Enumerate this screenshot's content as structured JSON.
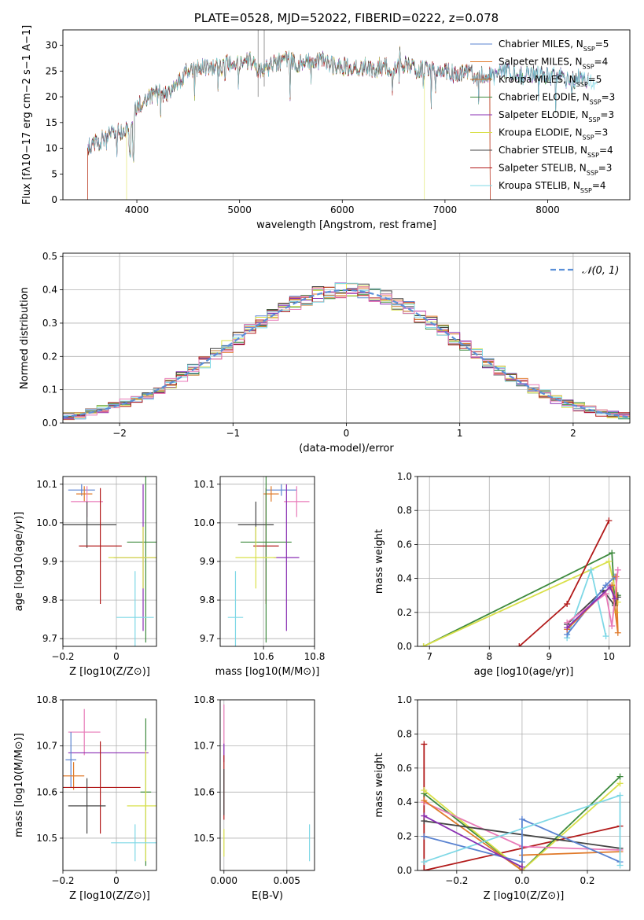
{
  "colors": {
    "Chabrier MILES": "#5a83d1",
    "Salpeter MILES": "#e07a2a",
    "Kroupa MILES": "#c17a2e",
    "Chabrier ELODIE": "#3d8a3d",
    "Salpeter ELODIE": "#8a2fb3",
    "Kroupa ELODIE": "#d9e04a",
    "Chabrier STELIB": "#444444",
    "Salpeter STELIB": "#b21a1a",
    "Kroupa STELIB": "#7fd8e6",
    "pink": "#e87ab8",
    "grid": "#b0b0b0",
    "norm_line": "#5a8fd8"
  },
  "chart_data": [
    {
      "id": "spectrum",
      "type": "line",
      "title": "PLATE=0528, MJD=52022, FIBERID=0222, z=0.078",
      "xlabel": "wavelength [Angstrom, rest frame]",
      "ylabel": "Flux [fλ10−17 erg cm−2 s−1 A−1]",
      "xlim": [
        3280,
        8800
      ],
      "ylim": [
        0,
        33
      ],
      "xticks": [
        4000,
        5000,
        6000,
        7000,
        8000
      ],
      "yticks": [
        0,
        5,
        10,
        15,
        20,
        25,
        30
      ],
      "grid": false,
      "legend_position": "top-right",
      "legend": [
        "Chabrier MILES, N_SSP=5",
        "Salpeter MILES, N_SSP=4",
        "Kroupa MILES, N_SSP=5",
        "Chabrier ELODIE, N_SSP=3",
        "Salpeter ELODIE, N_SSP=3",
        "Kroupa ELODIE, N_SSP=3",
        "Chabrier STELIB, N_SSP=4",
        "Salpeter STELIB, N_SSP=3",
        "Kroupa STELIB, N_SSP=4"
      ],
      "continuum": [
        [
          3500,
          10
        ],
        [
          3600,
          11
        ],
        [
          3700,
          12
        ],
        [
          3800,
          13
        ],
        [
          3900,
          13.5
        ],
        [
          3950,
          15
        ],
        [
          4000,
          18
        ],
        [
          4100,
          20
        ],
        [
          4200,
          21
        ],
        [
          4300,
          20
        ],
        [
          4400,
          23
        ],
        [
          4500,
          25
        ],
        [
          4600,
          25.5
        ],
        [
          4700,
          26
        ],
        [
          4800,
          25.5
        ],
        [
          4900,
          26.5
        ],
        [
          5000,
          26
        ],
        [
          5100,
          27
        ],
        [
          5200,
          25
        ],
        [
          5300,
          26
        ],
        [
          5400,
          27
        ],
        [
          5500,
          27
        ],
        [
          5600,
          26.5
        ],
        [
          5700,
          27
        ],
        [
          5800,
          27
        ],
        [
          5900,
          26
        ],
        [
          6000,
          26
        ],
        [
          6100,
          26
        ],
        [
          6200,
          26
        ],
        [
          6300,
          25.5
        ],
        [
          6400,
          26
        ],
        [
          6500,
          25.5
        ],
        [
          6600,
          26.5
        ],
        [
          6700,
          25.5
        ],
        [
          6800,
          25
        ],
        [
          6900,
          25
        ],
        [
          7000,
          25
        ],
        [
          7100,
          24.5
        ],
        [
          7200,
          25
        ],
        [
          7300,
          24
        ],
        [
          7400,
          24
        ],
        [
          7500,
          24
        ],
        [
          7600,
          25
        ],
        [
          7700,
          24
        ],
        [
          7800,
          24.5
        ],
        [
          7900,
          24.5
        ],
        [
          8000,
          24
        ],
        [
          8100,
          24
        ],
        [
          8200,
          23.5
        ],
        [
          8300,
          23.5
        ],
        [
          8400,
          23
        ],
        [
          8500,
          22
        ]
      ],
      "series_extents": [
        [
          3520,
          7220
        ],
        [
          3520,
          7440
        ],
        [
          3520,
          7440
        ],
        [
          3520,
          8400
        ],
        [
          3520,
          8400
        ],
        [
          3900,
          6800
        ],
        [
          3520,
          8400
        ],
        [
          3520,
          7440
        ],
        [
          3520,
          8490
        ]
      ]
    },
    {
      "id": "residuals",
      "type": "line",
      "xlabel": "(data-model)/error",
      "ylabel": "Normed distribution",
      "xlim": [
        -2.5,
        2.5
      ],
      "ylim": [
        0,
        0.51
      ],
      "xticks": [
        -2,
        -1,
        0,
        1,
        2
      ],
      "yticks": [
        0.0,
        0.1,
        0.2,
        0.3,
        0.4,
        0.5
      ],
      "grid": true,
      "legend_position": "top-right",
      "legend": [
        "N(0,1)"
      ],
      "normal": {
        "mean": 0,
        "sd": 1
      }
    },
    {
      "id": "age_vs_Z",
      "type": "scatter",
      "xlabel": "Z [log10(Z/Z⊙)]",
      "ylabel": "age [log10(age/yr)]",
      "xlim": [
        -0.2,
        0.15
      ],
      "ylim": [
        9.68,
        10.12
      ],
      "xticks": [
        -0.2,
        0.0
      ],
      "yticks": [
        9.7,
        9.8,
        9.9,
        10.0,
        10.1
      ],
      "grid": true,
      "points": [
        {
          "c": "Chabrier MILES",
          "x": -0.13,
          "y": 10.085,
          "ex": 0.05,
          "ey": 0.015
        },
        {
          "c": "Salpeter MILES",
          "x": -0.12,
          "y": 10.075,
          "ex": 0.03,
          "ey": 0.02
        },
        {
          "c": "pink",
          "x": -0.11,
          "y": 10.055,
          "ex": 0.06,
          "ey": 0.04
        },
        {
          "c": "Chabrier STELIB",
          "x": -0.11,
          "y": 9.995,
          "ex": 0.11,
          "ey": 0.06
        },
        {
          "c": "Salpeter STELIB",
          "x": -0.06,
          "y": 9.94,
          "ex": 0.08,
          "ey": 0.15
        },
        {
          "c": "Chabrier ELODIE",
          "x": 0.11,
          "y": 9.95,
          "ex": 0.07,
          "ey": 0.26
        },
        {
          "c": "Salpeter ELODIE",
          "x": 0.1,
          "y": 9.91,
          "ex": 0.11,
          "ey": 0.19
        },
        {
          "c": "Kroupa ELODIE",
          "x": 0.1,
          "y": 9.91,
          "ex": 0.13,
          "ey": 0.08
        },
        {
          "c": "Kroupa STELIB",
          "x": 0.07,
          "y": 9.755,
          "ex": 0.07,
          "ey": 0.12
        }
      ]
    },
    {
      "id": "age_vs_mass",
      "type": "scatter",
      "xlabel": "mass [log10(M/M⊙)]",
      "ylabel": "",
      "xlim": [
        10.43,
        10.8
      ],
      "ylim": [
        9.68,
        10.12
      ],
      "xticks": [
        10.6,
        10.8
      ],
      "yticks": [
        9.7,
        9.8,
        9.9,
        10.0,
        10.1
      ],
      "grid": true,
      "points": [
        {
          "c": "Chabrier MILES",
          "x": 10.67,
          "y": 10.085,
          "ex": 0.06,
          "ey": 0.015
        },
        {
          "c": "Salpeter MILES",
          "x": 10.63,
          "y": 10.075,
          "ex": 0.03,
          "ey": 0.02
        },
        {
          "c": "pink",
          "x": 10.73,
          "y": 10.055,
          "ex": 0.05,
          "ey": 0.04
        },
        {
          "c": "Chabrier STELIB",
          "x": 10.57,
          "y": 9.995,
          "ex": 0.07,
          "ey": 0.06
        },
        {
          "c": "Salpeter STELIB",
          "x": 10.61,
          "y": 9.94,
          "ex": 0.05,
          "ey": 0.15
        },
        {
          "c": "Chabrier ELODIE",
          "x": 10.61,
          "y": 9.95,
          "ex": 0.1,
          "ey": 0.26
        },
        {
          "c": "Salpeter ELODIE",
          "x": 10.69,
          "y": 9.91,
          "ex": 0.05,
          "ey": 0.19
        },
        {
          "c": "Kroupa ELODIE",
          "x": 10.57,
          "y": 9.91,
          "ex": 0.08,
          "ey": 0.08
        },
        {
          "c": "Kroupa STELIB",
          "x": 10.49,
          "y": 9.755,
          "ex": 0.03,
          "ey": 0.12
        }
      ]
    },
    {
      "id": "weight_vs_age",
      "type": "line",
      "xlabel": "age [log10(age/yr)]",
      "ylabel": "mass weight",
      "xlim": [
        6.8,
        10.35
      ],
      "ylim": [
        0,
        1
      ],
      "xticks": [
        7,
        8,
        9,
        10
      ],
      "yticks": [
        0.0,
        0.2,
        0.4,
        0.6,
        0.8,
        1.0
      ],
      "grid": true,
      "series": [
        {
          "c": "Chabrier ELODIE",
          "pts": [
            [
              6.9,
              0.0
            ],
            [
              10.05,
              0.55
            ],
            [
              10.1,
              0.25
            ],
            [
              10.15,
              0.3
            ]
          ]
        },
        {
          "c": "Kroupa ELODIE",
          "pts": [
            [
              6.9,
              0.0
            ],
            [
              10.0,
              0.5
            ],
            [
              10.15,
              0.26
            ],
            [
              10.12,
              0.2
            ]
          ]
        },
        {
          "c": "Salpeter STELIB",
          "pts": [
            [
              8.5,
              0.0
            ],
            [
              9.3,
              0.25
            ],
            [
              10.0,
              0.74
            ]
          ]
        },
        {
          "c": "Chabrier STELIB",
          "pts": [
            [
              9.3,
              0.13
            ],
            [
              9.9,
              0.33
            ],
            [
              10.1,
              0.24
            ],
            [
              10.15,
              0.29
            ]
          ]
        },
        {
          "c": "Kroupa STELIB",
          "pts": [
            [
              9.3,
              0.05
            ],
            [
              9.7,
              0.45
            ],
            [
              9.95,
              0.06
            ]
          ]
        },
        {
          "c": "Chabrier MILES",
          "pts": [
            [
              9.3,
              0.07
            ],
            [
              9.95,
              0.36
            ],
            [
              10.1,
              0.41
            ]
          ]
        },
        {
          "c": "Salpeter MILES",
          "pts": [
            [
              9.3,
              0.1
            ],
            [
              10.05,
              0.36
            ],
            [
              10.15,
              0.08
            ],
            [
              10.12,
              0.41
            ]
          ]
        },
        {
          "c": "pink",
          "pts": [
            [
              9.3,
              0.14
            ],
            [
              9.95,
              0.31
            ],
            [
              10.05,
              0.12
            ],
            [
              10.15,
              0.45
            ]
          ]
        },
        {
          "c": "Salpeter ELODIE",
          "pts": [
            [
              9.3,
              0.11
            ],
            [
              10.02,
              0.35
            ],
            [
              10.1,
              0.28
            ]
          ]
        }
      ]
    },
    {
      "id": "mass_vs_Z",
      "type": "scatter",
      "xlabel": "Z [log10(Z/Z⊙)]",
      "ylabel": "mass [log10(M/M⊙)]",
      "xlim": [
        -0.2,
        0.15
      ],
      "ylim": [
        10.43,
        10.8
      ],
      "xticks": [
        -0.2,
        0.0
      ],
      "yticks": [
        10.5,
        10.6,
        10.7,
        10.8
      ],
      "grid": true,
      "points": [
        {
          "c": "pink",
          "x": -0.12,
          "y": 10.73,
          "ex": 0.06,
          "ey": 0.05
        },
        {
          "c": "Salpeter ELODIE",
          "x": -0.03,
          "y": 10.685,
          "ex": 0.15,
          "ey": 0.0
        },
        {
          "c": "Chabrier MILES",
          "x": -0.17,
          "y": 10.67,
          "ex": 0.02,
          "ey": 0.06
        },
        {
          "c": "Salpeter MILES",
          "x": -0.16,
          "y": 10.635,
          "ex": 0.04,
          "ey": 0.03
        },
        {
          "c": "Salpeter STELIB",
          "x": -0.06,
          "y": 10.61,
          "ex": 0.15,
          "ey": 0.1
        },
        {
          "c": "Chabrier ELODIE",
          "x": 0.11,
          "y": 10.6,
          "ex": 0.02,
          "ey": 0.16
        },
        {
          "c": "Chabrier STELIB",
          "x": -0.11,
          "y": 10.57,
          "ex": 0.07,
          "ey": 0.06
        },
        {
          "c": "Kroupa ELODIE",
          "x": 0.11,
          "y": 10.57,
          "ex": 0.07,
          "ey": 0.12
        },
        {
          "c": "Kroupa STELIB",
          "x": 0.07,
          "y": 10.49,
          "ex": 0.09,
          "ey": 0.04
        }
      ]
    },
    {
      "id": "mass_vs_EBV",
      "type": "scatter",
      "xlabel": "E(B-V)",
      "ylabel": "",
      "xlim": [
        -0.0003,
        0.0072
      ],
      "ylim": [
        10.43,
        10.8
      ],
      "xticks": [
        0.0,
        0.005
      ],
      "yticks": [
        10.5,
        10.6,
        10.7,
        10.8
      ],
      "grid": true,
      "points": [
        {
          "c": "pink",
          "x": 0.0,
          "y": 10.73,
          "ex": 0,
          "ey": 0.06
        },
        {
          "c": "Salpeter ELODIE",
          "x": 0.0,
          "y": 10.685,
          "ex": 0,
          "ey": 0.02
        },
        {
          "c": "Salpeter STELIB",
          "x": 0.0,
          "y": 10.61,
          "ex": 0,
          "ey": 0.07
        },
        {
          "c": "Chabrier STELIB",
          "x": 0.0,
          "y": 10.6,
          "ex": 0,
          "ey": 0.05
        },
        {
          "c": "Kroupa ELODIE",
          "x": 0.0,
          "y": 10.49,
          "ex": 0,
          "ey": 0.03
        },
        {
          "c": "Kroupa STELIB",
          "x": 0.0068,
          "y": 10.49,
          "ex": 0,
          "ey": 0.04
        }
      ]
    },
    {
      "id": "weight_vs_Z",
      "type": "line",
      "xlabel": "Z [log10(Z/Z⊙)]",
      "ylabel": "mass weight",
      "xlim": [
        -0.32,
        0.33
      ],
      "ylim": [
        0,
        1
      ],
      "xticks": [
        -0.2,
        0.0,
        0.2
      ],
      "yticks": [
        0.0,
        0.2,
        0.4,
        0.6,
        0.8,
        1.0
      ],
      "grid": true,
      "series": [
        {
          "c": "Salpeter STELIB",
          "pts": [
            [
              -0.3,
              0.74
            ],
            [
              -0.3,
              0.0
            ],
            [
              0.3,
              0.26
            ]
          ]
        },
        {
          "c": "Chabrier ELODIE",
          "pts": [
            [
              -0.3,
              0.45
            ],
            [
              0.0,
              0.0
            ],
            [
              0.3,
              0.55
            ]
          ]
        },
        {
          "c": "Kroupa ELODIE",
          "pts": [
            [
              -0.3,
              0.47
            ],
            [
              0.0,
              0.0
            ],
            [
              0.3,
              0.51
            ]
          ]
        },
        {
          "c": "pink",
          "pts": [
            [
              -0.3,
              0.4
            ],
            [
              0.0,
              0.14
            ],
            [
              0.3,
              0.12
            ]
          ]
        },
        {
          "c": "Salpeter MILES",
          "pts": [
            [
              -0.3,
              0.41
            ],
            [
              0.0,
              0.0
            ],
            [
              0.0,
              0.09
            ],
            [
              0.3,
              0.11
            ]
          ]
        },
        {
          "c": "Chabrier STELIB",
          "pts": [
            [
              -0.3,
              0.29
            ],
            [
              0.3,
              0.13
            ]
          ]
        },
        {
          "c": "Chabrier MILES",
          "pts": [
            [
              -0.3,
              0.2
            ],
            [
              0.0,
              0.05
            ],
            [
              0.0,
              0.3
            ],
            [
              0.3,
              0.05
            ]
          ]
        },
        {
          "c": "Kroupa STELIB",
          "pts": [
            [
              -0.3,
              0.05
            ],
            [
              0.3,
              0.44
            ],
            [
              0.3,
              0.03
            ]
          ]
        },
        {
          "c": "Salpeter ELODIE",
          "pts": [
            [
              -0.3,
              0.32
            ],
            [
              0.0,
              0.02
            ]
          ]
        }
      ]
    }
  ]
}
